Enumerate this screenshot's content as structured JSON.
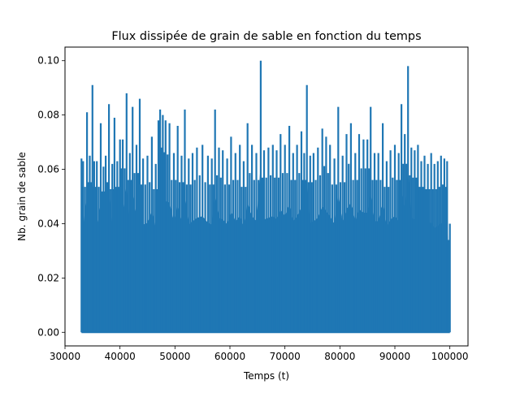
{
  "chart_data": {
    "type": "line",
    "title": "Flux dissipée de grain de sable en fonction du temps",
    "xlabel": "Temps (t)",
    "ylabel": "Nb. grain de sable",
    "xlim": [
      30000,
      103300
    ],
    "ylim": [
      -0.005,
      0.105
    ],
    "xticks": [
      30000,
      40000,
      50000,
      60000,
      70000,
      80000,
      90000,
      100000
    ],
    "yticks": [
      0.0,
      0.02,
      0.04,
      0.06,
      0.08,
      0.1
    ],
    "xtick_labels": [
      "30000",
      "40000",
      "50000",
      "60000",
      "70000",
      "80000",
      "90000",
      "100000"
    ],
    "ytick_labels": [
      "0.00",
      "0.02",
      "0.04",
      "0.06",
      "0.08",
      "0.10"
    ],
    "grid": false,
    "legend": "none",
    "series": [
      {
        "color": "#1f77b4",
        "x": [
          33000,
          33300,
          34000,
          34500,
          35000,
          35300,
          35800,
          36500,
          37000,
          37400,
          38000,
          38600,
          39000,
          39500,
          40000,
          40500,
          41200,
          41800,
          42300,
          43000,
          43600,
          44200,
          45000,
          45800,
          46500,
          47000,
          47300,
          47800,
          48300,
          49000,
          49800,
          50500,
          51200,
          51800,
          52500,
          53200,
          54000,
          55000,
          56000,
          56700,
          57300,
          58000,
          58700,
          59500,
          60200,
          61000,
          61800,
          62500,
          63200,
          64000,
          64800,
          65600,
          66200,
          67000,
          67800,
          68500,
          69200,
          70000,
          70800,
          71500,
          72200,
          73000,
          73500,
          74000,
          74600,
          75200,
          76000,
          76800,
          77500,
          78200,
          79000,
          79700,
          80500,
          81200,
          82000,
          82800,
          83500,
          84300,
          85000,
          85600,
          86300,
          87000,
          87800,
          88500,
          89200,
          90000,
          90700,
          91200,
          91800,
          92400,
          93000,
          93600,
          94200,
          94800,
          95400,
          96000,
          96600,
          97200,
          97800,
          98400,
          99000,
          99500,
          100000
        ],
        "upper": [
          0.064,
          0.063,
          0.081,
          0.065,
          0.091,
          0.063,
          0.063,
          0.077,
          0.061,
          0.065,
          0.084,
          0.062,
          0.079,
          0.063,
          0.071,
          0.071,
          0.088,
          0.066,
          0.083,
          0.069,
          0.086,
          0.064,
          0.065,
          0.072,
          0.062,
          0.078,
          0.082,
          0.08,
          0.078,
          0.077,
          0.066,
          0.076,
          0.065,
          0.082,
          0.064,
          0.066,
          0.068,
          0.069,
          0.065,
          0.064,
          0.082,
          0.068,
          0.067,
          0.064,
          0.072,
          0.066,
          0.069,
          0.063,
          0.077,
          0.069,
          0.066,
          0.1,
          0.067,
          0.068,
          0.069,
          0.067,
          0.073,
          0.069,
          0.076,
          0.066,
          0.069,
          0.074,
          0.066,
          0.091,
          0.065,
          0.066,
          0.068,
          0.075,
          0.072,
          0.069,
          0.064,
          0.083,
          0.065,
          0.073,
          0.077,
          0.066,
          0.073,
          0.071,
          0.071,
          0.083,
          0.066,
          0.066,
          0.077,
          0.063,
          0.067,
          0.069,
          0.066,
          0.084,
          0.073,
          0.098,
          0.068,
          0.067,
          0.069,
          0.063,
          0.065,
          0.062,
          0.066,
          0.062,
          0.063,
          0.065,
          0.064,
          0.063,
          0.04
        ],
        "lower": 0.0
      }
    ]
  }
}
